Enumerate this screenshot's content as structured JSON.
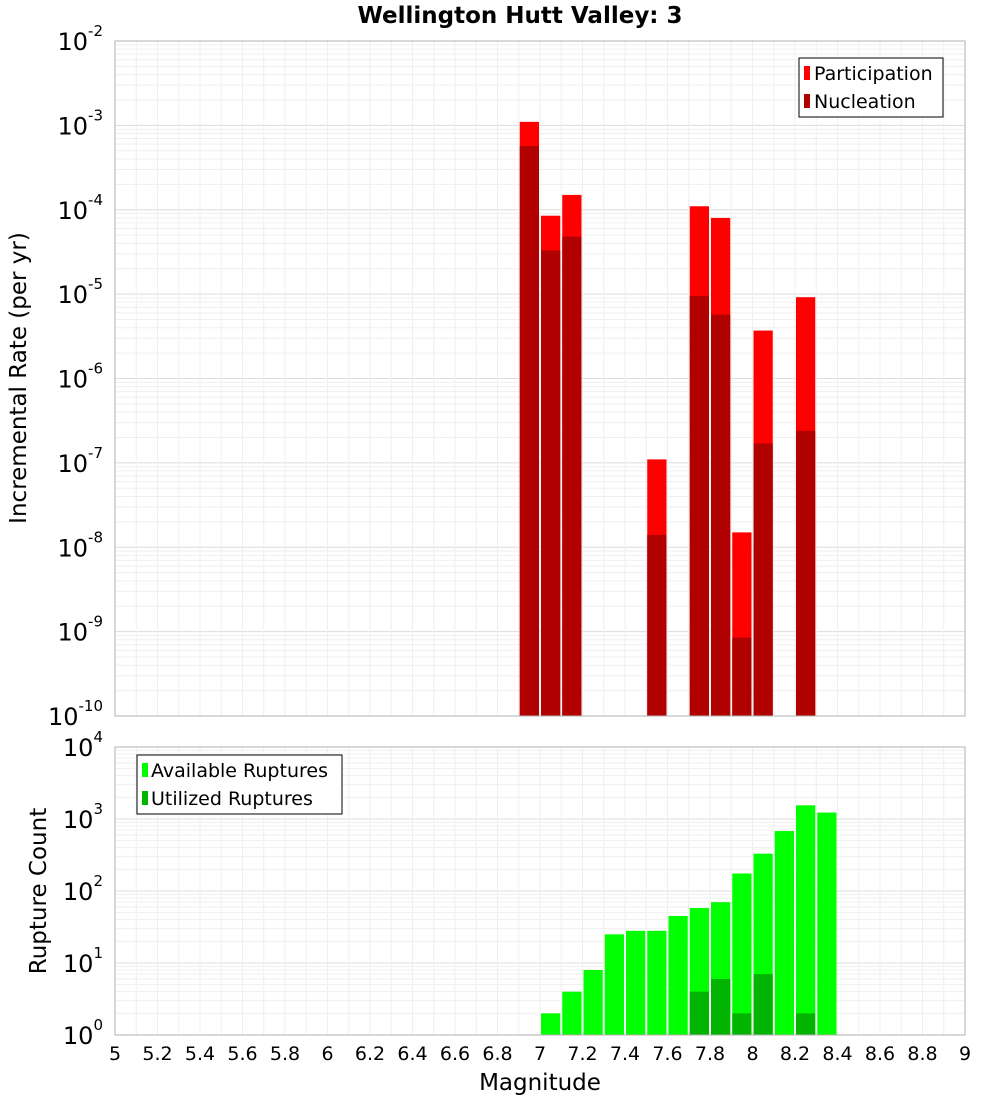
{
  "chart_data": [
    {
      "type": "bar",
      "title": "Wellington Hutt Valley: 3",
      "xlabel": "",
      "ylabel": "Incremental Rate (per yr)",
      "xlim": [
        5,
        9
      ],
      "ylim": [
        1e-10,
        0.01
      ],
      "y_scale": "log",
      "y_ticks": [
        "10^-10",
        "10^-9",
        "10^-8",
        "10^-7",
        "10^-6",
        "10^-5",
        "10^-4",
        "10^-3",
        "10^-2"
      ],
      "grid": true,
      "legend_position": "top-right",
      "overlay": true,
      "series": [
        {
          "name": "Participation",
          "color": "#ff0000",
          "x": [
            6.95,
            7.05,
            7.15,
            7.55,
            7.75,
            7.85,
            7.95,
            8.05,
            8.25
          ],
          "values": [
            0.0011,
            8.5e-05,
            0.00015,
            1.1e-07,
            0.00011,
            8e-05,
            1.5e-08,
            3.7e-06,
            9.2e-06
          ]
        },
        {
          "name": "Nucleation",
          "color": "#b00000",
          "x": [
            6.95,
            7.05,
            7.15,
            7.55,
            7.75,
            7.85,
            7.95,
            8.05,
            8.25
          ],
          "values": [
            0.00057,
            3.3e-05,
            4.8e-05,
            1.4e-08,
            9.5e-06,
            5.7e-06,
            8.5e-10,
            1.7e-07,
            2.4e-07
          ]
        }
      ]
    },
    {
      "type": "bar",
      "title": "",
      "xlabel": "Magnitude",
      "ylabel": "Rupture Count",
      "xlim": [
        5,
        9
      ],
      "x_ticks": [
        "5",
        "5.2",
        "5.4",
        "5.6",
        "5.8",
        "6",
        "6.2",
        "6.4",
        "6.6",
        "6.8",
        "7",
        "7.2",
        "7.4",
        "7.6",
        "7.8",
        "8",
        "8.2",
        "8.4",
        "8.6",
        "8.8",
        "9"
      ],
      "ylim": [
        1,
        10000.0
      ],
      "y_scale": "log",
      "y_ticks": [
        "10^0",
        "10^1",
        "10^2",
        "10^3",
        "10^4"
      ],
      "grid": true,
      "legend_position": "top-left",
      "overlay": true,
      "series": [
        {
          "name": "Available Ruptures",
          "color": "#00ff00",
          "x": [
            6.65,
            6.95,
            7.05,
            7.15,
            7.25,
            7.35,
            7.45,
            7.55,
            7.65,
            7.75,
            7.85,
            7.95,
            8.05,
            8.15,
            8.25,
            8.35
          ],
          "values": [
            1,
            1,
            2,
            4,
            8,
            25,
            28,
            28,
            45,
            58,
            70,
            175,
            330,
            680,
            1550,
            1230
          ]
        },
        {
          "name": "Utilized Ruptures",
          "color": "#00b400",
          "x": [
            6.95,
            7.05,
            7.15,
            7.55,
            7.75,
            7.85,
            7.95,
            8.05,
            8.25
          ],
          "values": [
            1,
            1,
            1,
            1,
            4,
            6,
            2,
            7,
            2
          ]
        }
      ]
    }
  ]
}
